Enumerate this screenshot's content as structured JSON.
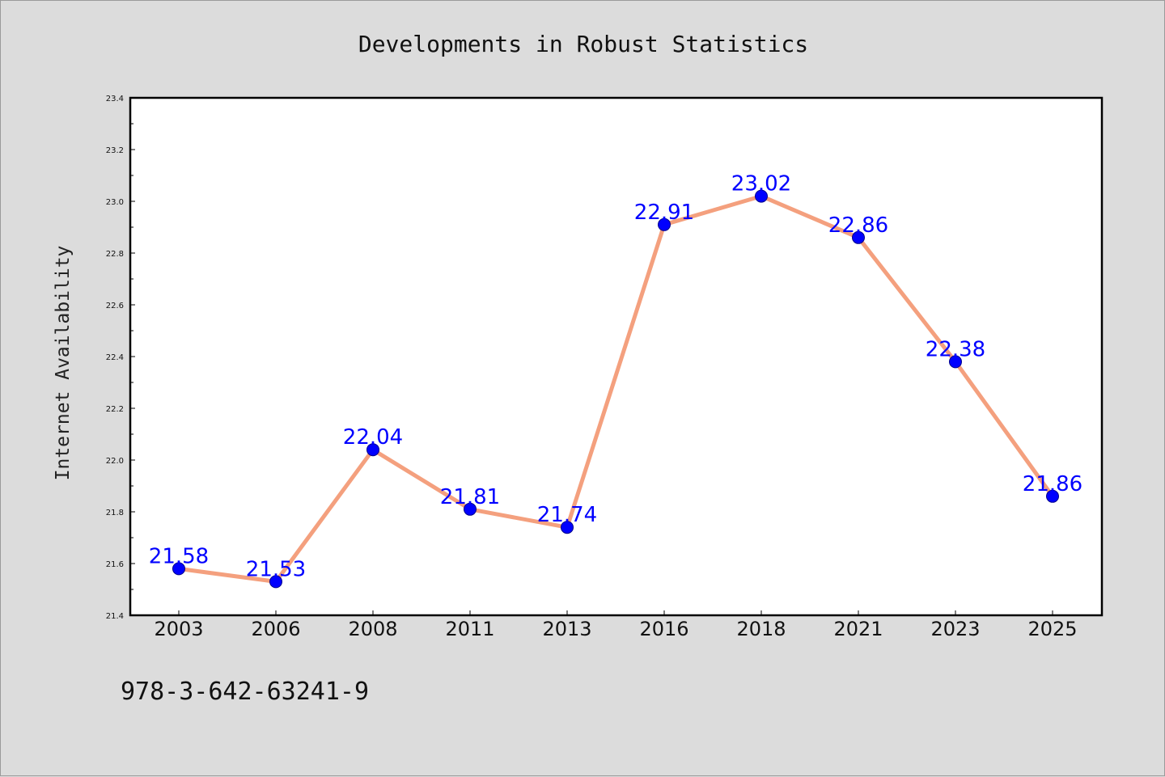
{
  "chart_data": {
    "type": "line",
    "title": "Developments in Robust Statistics",
    "xlabel": "",
    "ylabel": "Internet Availability",
    "categories": [
      "2003",
      "2006",
      "2008",
      "2011",
      "2013",
      "2016",
      "2018",
      "2021",
      "2023",
      "2025"
    ],
    "series": [
      {
        "values": [
          21.58,
          21.53,
          22.04,
          21.81,
          21.74,
          22.91,
          23.02,
          22.86,
          22.38,
          21.86
        ],
        "labels": [
          "21.58",
          "21.53",
          "22.04",
          "21.81",
          "21.74",
          "22.91",
          "23.02",
          "22.86",
          "22.38",
          "21.86"
        ]
      }
    ],
    "ylim": [
      21.4,
      23.4
    ],
    "yticks": [
      "21.4",
      "21.6",
      "21.8",
      "22.0",
      "22.2",
      "22.4",
      "22.6",
      "22.8",
      "23.0",
      "23.2",
      "23.4"
    ],
    "grid": false,
    "legend": "none",
    "colors": {
      "line": "#f4a07e",
      "marker": "#0000ff",
      "label": "#0000ff",
      "background": "#dcdcdc",
      "plot_background": "#ffffff"
    }
  },
  "footer": {
    "code": "978-3-642-63241-9"
  }
}
